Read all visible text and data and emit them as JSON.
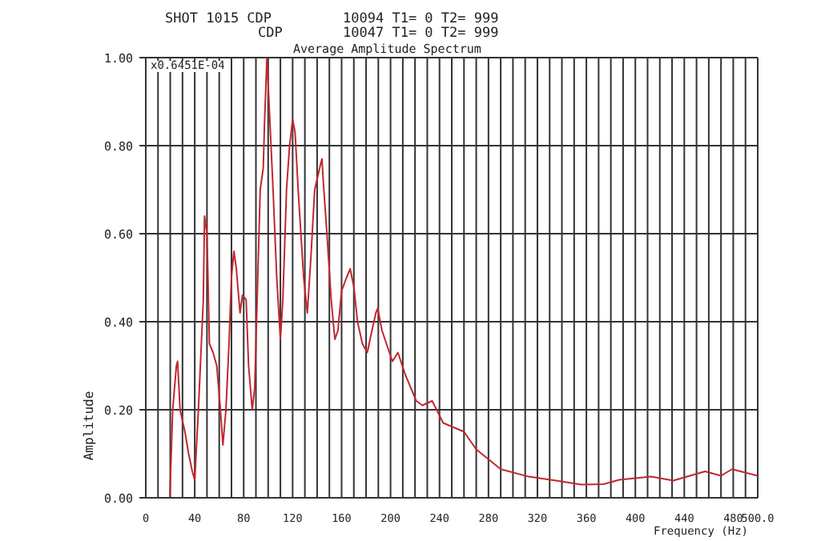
{
  "chart_data": {
    "type": "line",
    "title": "Average Amplitude Spectrum",
    "xlabel": "Frequency (Hz)",
    "ylabel": "Amplitude",
    "annotations": [
      "SHOT 1015 CDP",
      "10094 T1= 0 T2= 999",
      "CDP",
      "10047 T1= 0 T2= 999",
      "x0.6451E-04"
    ],
    "x": [
      0,
      16,
      19.6,
      22,
      25,
      26,
      28,
      32,
      35,
      38,
      40,
      43,
      47,
      48,
      50,
      52,
      55,
      58,
      61,
      63,
      65.5,
      68,
      70,
      72,
      74,
      77,
      79,
      82,
      84,
      87,
      89,
      91,
      93.5,
      96,
      97,
      99,
      101,
      104,
      107,
      110,
      112,
      115,
      117.5,
      120,
      122,
      124.5,
      129,
      132,
      135,
      138,
      143,
      144,
      145,
      148,
      151.5,
      154.5,
      157,
      160,
      164,
      167,
      170,
      173,
      177,
      181,
      184,
      188,
      189.5,
      193,
      201.5,
      206,
      212,
      221,
      226,
      234,
      243,
      260,
      270,
      290,
      313,
      335,
      356,
      374,
      387,
      413,
      431,
      457,
      470,
      479,
      500
    ],
    "series": [
      {
        "color": "#c0282d",
        "values": [
          0,
          0,
          0,
          0.2,
          0.3,
          0.31,
          0.2,
          0.15,
          0.1,
          0.06,
          0.04,
          0.2,
          0.45,
          0.64,
          0.6,
          0.35,
          0.33,
          0.3,
          0.2,
          0.12,
          0.2,
          0.35,
          0.5,
          0.56,
          0.52,
          0.42,
          0.46,
          0.45,
          0.3,
          0.2,
          0.25,
          0.45,
          0.7,
          0.75,
          0.85,
          1.0,
          0.88,
          0.7,
          0.5,
          0.36,
          0.45,
          0.7,
          0.8,
          0.86,
          0.83,
          0.7,
          0.5,
          0.42,
          0.55,
          0.7,
          0.76,
          0.77,
          0.72,
          0.6,
          0.45,
          0.36,
          0.38,
          0.47,
          0.5,
          0.52,
          0.48,
          0.4,
          0.35,
          0.33,
          0.37,
          0.42,
          0.43,
          0.38,
          0.31,
          0.33,
          0.28,
          0.22,
          0.21,
          0.22,
          0.17,
          0.15,
          0.11,
          0.065,
          0.048,
          0.039,
          0.03,
          0.031,
          0.041,
          0.048,
          0.039,
          0.06,
          0.05,
          0.065,
          0.05
        ]
      }
    ],
    "xlim": [
      0,
      500
    ],
    "xticks": [
      0,
      {
        "value": 10,
        "label": null
      },
      {
        "value": 20,
        "label": null
      },
      {
        "value": 30,
        "label": null
      },
      40,
      {
        "value": 50,
        "label": null
      },
      {
        "value": 60,
        "label": null
      },
      {
        "value": 70,
        "label": null
      },
      80,
      {
        "value": 90,
        "label": null
      },
      {
        "value": 100,
        "label": null
      },
      {
        "value": 110,
        "label": null
      },
      120,
      {
        "value": 130,
        "label": null
      },
      {
        "value": 140,
        "label": null
      },
      {
        "value": 150,
        "label": null
      },
      160,
      {
        "value": 170,
        "label": null
      },
      {
        "value": 180,
        "label": null
      },
      {
        "value": 190,
        "label": null
      },
      200,
      {
        "value": 210,
        "label": null
      },
      {
        "value": 220,
        "label": null
      },
      {
        "value": 230,
        "label": null
      },
      240,
      {
        "value": 250,
        "label": null
      },
      {
        "value": 260,
        "label": null
      },
      {
        "value": 270,
        "label": null
      },
      280,
      {
        "value": 290,
        "label": null
      },
      {
        "value": 300,
        "label": null
      },
      {
        "value": 310,
        "label": null
      },
      320,
      {
        "value": 330,
        "label": null
      },
      {
        "value": 340,
        "label": null
      },
      {
        "value": 350,
        "label": null
      },
      360,
      {
        "value": 370,
        "label": null
      },
      {
        "value": 380,
        "label": null
      },
      {
        "value": 390,
        "label": null
      },
      400,
      {
        "value": 410,
        "label": null
      },
      {
        "value": 420,
        "label": null
      },
      {
        "value": 430,
        "label": null
      },
      440,
      {
        "value": 450,
        "label": null
      },
      {
        "value": 460,
        "label": null
      },
      {
        "value": 470,
        "label": null
      },
      480,
      {
        "value": 490,
        "label": null
      },
      {
        "value": 500,
        "label": "500.0"
      }
    ],
    "ylim": [
      0,
      1
    ],
    "yticks": [
      {
        "value": 0,
        "label": "0.00"
      },
      {
        "value": 0.2,
        "label": "0.20"
      },
      {
        "value": 0.4,
        "label": "0.40"
      },
      {
        "value": 0.6,
        "label": "0.60"
      },
      {
        "value": 0.8,
        "label": "0.80"
      },
      {
        "value": 1,
        "label": "1.00"
      }
    ],
    "grid": true,
    "legend": false,
    "marker": "none",
    "line_style": "solid"
  }
}
